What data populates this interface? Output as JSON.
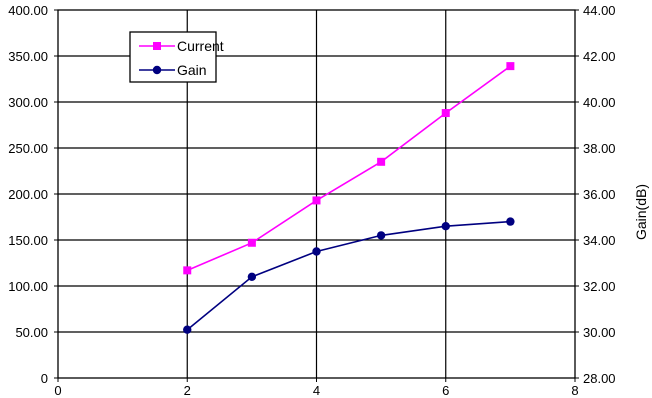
{
  "chart_data": {
    "type": "line",
    "title": "",
    "xlabel": "",
    "ylabel": "",
    "y2label": "Gain(dB)",
    "xlim": [
      0,
      8
    ],
    "ylim": [
      0,
      400
    ],
    "y2lim": [
      28,
      44
    ],
    "x_ticks": [
      "0",
      "2",
      "4",
      "6",
      "8"
    ],
    "y_ticks": [
      "0",
      "50.00",
      "100.00",
      "150.00",
      "200.00",
      "250.00",
      "300.00",
      "350.00",
      "400.00"
    ],
    "y2_ticks": [
      "28.00",
      "30.00",
      "32.00",
      "34.00",
      "36.00",
      "38.00",
      "40.00",
      "42.00",
      "44.00"
    ],
    "grid": true,
    "legend_position": "top-left",
    "series": [
      {
        "name": "Current",
        "axis": "left",
        "color": "#ff00ff",
        "marker": "square",
        "x": [
          2,
          3,
          4,
          5,
          6,
          7
        ],
        "y": [
          117,
          147,
          193,
          235,
          288,
          339
        ]
      },
      {
        "name": "Gain",
        "axis": "right",
        "color": "#000080",
        "marker": "circle",
        "x": [
          2,
          3,
          4,
          5,
          6,
          7
        ],
        "y": [
          30.1,
          32.4,
          33.5,
          34.2,
          34.6,
          34.8
        ]
      }
    ]
  }
}
